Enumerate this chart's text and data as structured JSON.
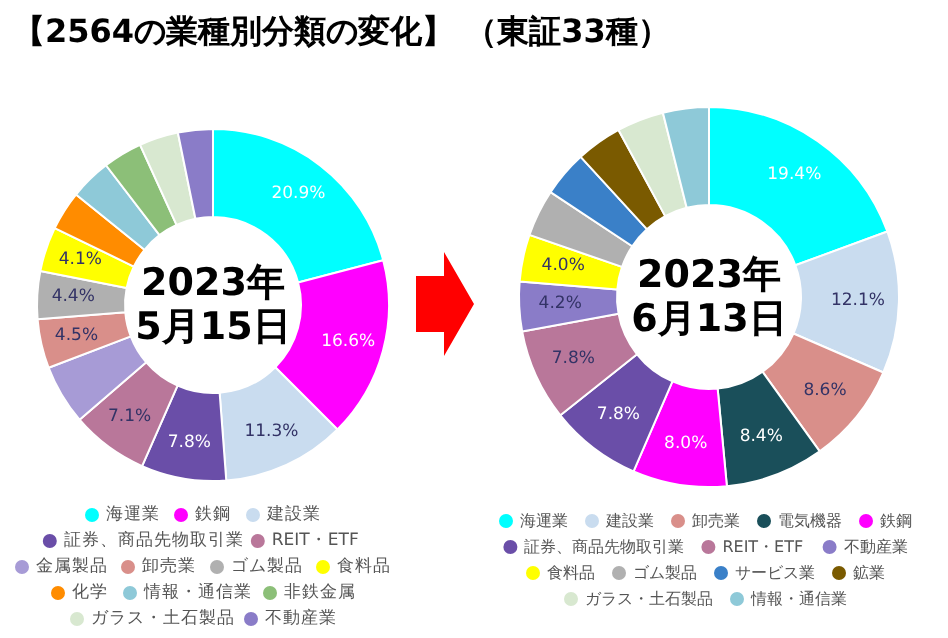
{
  "chart_data": [
    {
      "type": "donut",
      "title": "【2564の業種別分類の変化】 （東証33種）",
      "annotations": [
        "2023年\n5月15日"
      ],
      "legend": "bottom",
      "categories": [
        "海運業",
        "鉄鋼",
        "建設業",
        "証券、商品先物取引業",
        "REIT・ETF",
        "金属製品",
        "卸売業",
        "ゴム製品",
        "食料品",
        "化学",
        "情報・通信業",
        "非鉄金属",
        "ガラス・土石製品",
        "不動産業"
      ],
      "values": [
        20.9,
        16.6,
        11.3,
        7.8,
        7.1,
        5.5,
        4.5,
        4.4,
        4.1,
        3.6,
        3.8,
        3.6,
        3.6,
        3.2
      ],
      "value_labels": [
        "20.9%",
        "16.6%",
        "11.3%",
        "7.8%",
        "7.1%",
        null,
        "4.5%",
        "4.4%",
        "4.1%",
        null,
        null,
        null,
        null,
        null
      ],
      "colors": [
        "#00ffff",
        "#ff00ff",
        "#c9dcef",
        "#6a4ea8",
        "#b9779a",
        "#a79bd6",
        "#d98f8a",
        "#b0b0b0",
        "#ffff00",
        "#ff8c00",
        "#8ec9d8",
        "#8cbf78",
        "#d8e8d0",
        "#8a7cc8"
      ]
    },
    {
      "type": "donut",
      "annotations": [
        "2023年\n6月13日"
      ],
      "legend": "bottom",
      "categories": [
        "海運業",
        "建設業",
        "卸売業",
        "電気機器",
        "鉄鋼",
        "証券、商品先物取引業",
        "REIT・ETF",
        "不動産業",
        "食料品",
        "ゴム製品",
        "サービス業",
        "鉱業",
        "ガラス・土石製品",
        "情報・通信業"
      ],
      "values": [
        19.4,
        12.1,
        8.6,
        8.4,
        8.0,
        7.8,
        7.8,
        4.2,
        4.0,
        4.0,
        3.9,
        3.9,
        4.0,
        3.9
      ],
      "value_labels": [
        "19.4%",
        "12.1%",
        "8.6%",
        "8.4%",
        "8.0%",
        "7.8%",
        "7.8%",
        "4.2%",
        "4.0%",
        null,
        null,
        null,
        null,
        null
      ],
      "colors": [
        "#00ffff",
        "#c9dcef",
        "#d98f8a",
        "#1a4f5a",
        "#ff00ff",
        "#6a4ea8",
        "#b9779a",
        "#8a7cc8",
        "#ffff00",
        "#b0b0b0",
        "#3a80c8",
        "#7a5a00",
        "#d8e8d0",
        "#8ec9d8"
      ]
    }
  ]
}
